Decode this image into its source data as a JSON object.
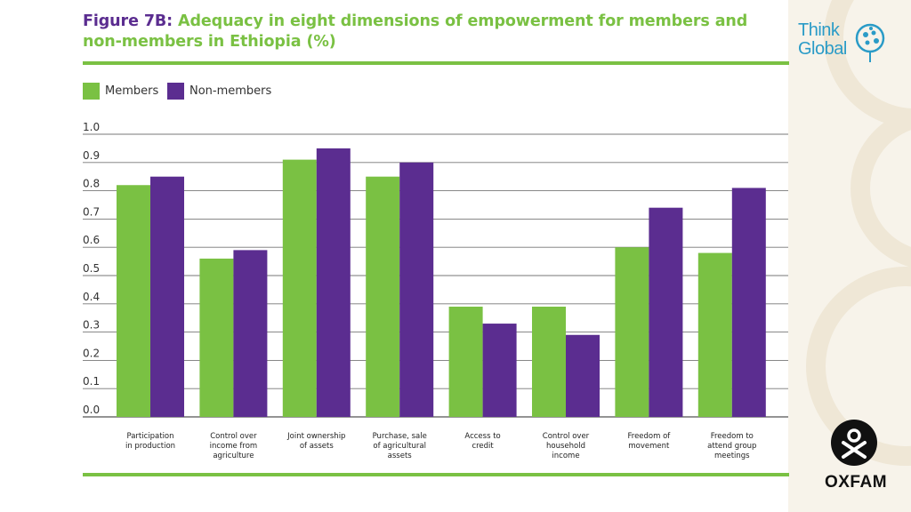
{
  "figure": {
    "prefix": "Figure 7B:",
    "title": "Adequacy in eight dimensions of empowerment for members and non-members in Ethiopia (%)"
  },
  "legend": [
    {
      "label": "Members",
      "color": "#7ac143"
    },
    {
      "label": "Non-members",
      "color": "#5b2d90"
    }
  ],
  "brand": {
    "think_global": [
      "Think",
      "Global"
    ],
    "oxfam": "OXFAM"
  },
  "chart_data": {
    "type": "bar",
    "title": "Adequacy in eight dimensions of empowerment for members and non-members in Ethiopia (%)",
    "xlabel": "",
    "ylabel": "",
    "ylim": [
      0,
      1.0
    ],
    "yticks": [
      "0.0",
      "0.1",
      "0.2",
      "0.3",
      "0.4",
      "0.5",
      "0.6",
      "0.7",
      "0.8",
      "0.9",
      "1.0"
    ],
    "grid": true,
    "legend_position": "top-left",
    "categories": [
      [
        "Participation",
        "in production"
      ],
      [
        "Control over",
        "income from",
        "agriculture"
      ],
      [
        "Joint ownership",
        "of assets"
      ],
      [
        "Purchase, sale",
        "of agricultural",
        "assets"
      ],
      [
        "Access to",
        "credit"
      ],
      [
        "Control over",
        "household",
        "income"
      ],
      [
        "Freedom of",
        "movement"
      ],
      [
        "Freedom to",
        "attend group",
        "meetings"
      ]
    ],
    "series": [
      {
        "name": "Members",
        "color": "#7ac143",
        "values": [
          0.82,
          0.56,
          0.91,
          0.85,
          0.39,
          0.39,
          0.6,
          0.58
        ]
      },
      {
        "name": "Non-members",
        "color": "#5b2d90",
        "values": [
          0.85,
          0.59,
          0.95,
          0.9,
          0.33,
          0.29,
          0.74,
          0.81
        ]
      }
    ]
  }
}
